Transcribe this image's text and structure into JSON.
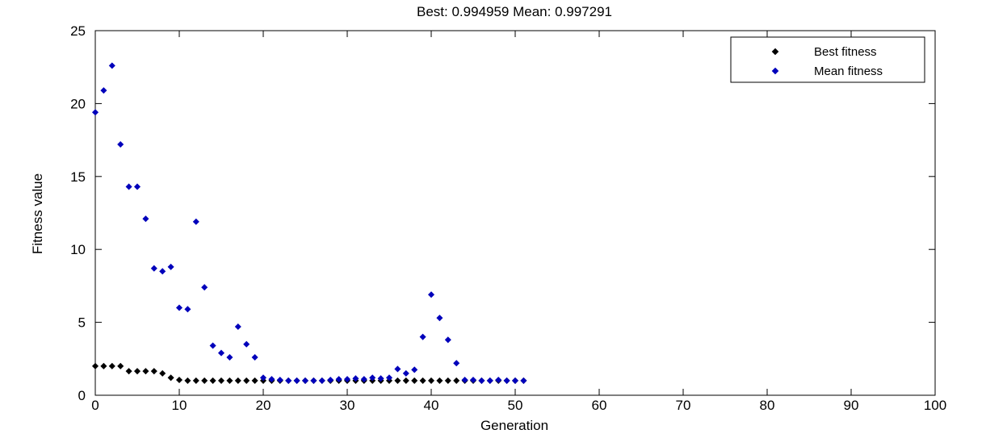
{
  "chart_data": {
    "type": "scatter",
    "title": "Best: 0.994959 Mean: 0.997291",
    "xlabel": "Generation",
    "ylabel": "Fitness value",
    "xlim": [
      0,
      100
    ],
    "ylim": [
      0,
      25
    ],
    "xticks": [
      0,
      10,
      20,
      30,
      40,
      50,
      60,
      70,
      80,
      90,
      100
    ],
    "yticks": [
      0,
      5,
      10,
      15,
      20,
      25
    ],
    "grid": false,
    "legend_position": "top-right",
    "series": [
      {
        "name": "Best fitness",
        "color": "#000000",
        "marker": "diamond",
        "x": [
          0,
          1,
          2,
          3,
          4,
          5,
          6,
          7,
          8,
          9,
          10,
          11,
          12,
          13,
          14,
          15,
          16,
          17,
          18,
          19,
          20,
          21,
          22,
          23,
          24,
          25,
          26,
          27,
          28,
          29,
          30,
          31,
          32,
          33,
          34,
          35,
          36,
          37,
          38,
          39,
          40,
          41,
          42,
          43,
          44,
          45,
          46,
          47,
          48,
          49,
          50,
          51
        ],
        "y": [
          2.0,
          2.0,
          2.0,
          2.0,
          1.65,
          1.65,
          1.65,
          1.65,
          1.5,
          1.2,
          1.05,
          1.0,
          1.0,
          1.0,
          1.0,
          1.0,
          1.0,
          1.0,
          1.0,
          1.0,
          1.0,
          1.0,
          1.0,
          1.0,
          1.0,
          1.0,
          1.0,
          1.0,
          1.0,
          1.0,
          1.0,
          1.0,
          1.0,
          1.0,
          1.0,
          1.0,
          1.0,
          1.0,
          1.0,
          1.0,
          1.0,
          1.0,
          1.0,
          1.0,
          1.0,
          1.0,
          1.0,
          1.0,
          1.0,
          1.0,
          1.0,
          1.0
        ]
      },
      {
        "name": "Mean fitness",
        "color": "#0000bb",
        "marker": "diamond",
        "x": [
          0,
          1,
          2,
          3,
          4,
          5,
          6,
          7,
          8,
          9,
          10,
          11,
          12,
          13,
          14,
          15,
          16,
          17,
          18,
          19,
          20,
          21,
          22,
          23,
          24,
          25,
          26,
          27,
          28,
          29,
          30,
          31,
          32,
          33,
          34,
          35,
          36,
          37,
          38,
          39,
          40,
          41,
          42,
          43,
          44,
          45,
          46,
          47,
          48,
          49,
          50,
          51
        ],
        "y": [
          19.4,
          20.9,
          22.6,
          17.2,
          14.3,
          14.3,
          12.1,
          8.7,
          8.5,
          8.8,
          6.0,
          5.9,
          11.9,
          7.4,
          3.4,
          2.9,
          2.6,
          4.7,
          3.5,
          2.6,
          1.2,
          1.1,
          1.05,
          1.0,
          1.0,
          1.0,
          1.0,
          1.0,
          1.05,
          1.1,
          1.1,
          1.15,
          1.1,
          1.2,
          1.15,
          1.2,
          1.8,
          1.5,
          1.75,
          4.0,
          6.9,
          5.3,
          3.8,
          2.2,
          1.05,
          1.05,
          1.0,
          1.0,
          1.05,
          1.0,
          1.0,
          1.0
        ]
      }
    ]
  }
}
